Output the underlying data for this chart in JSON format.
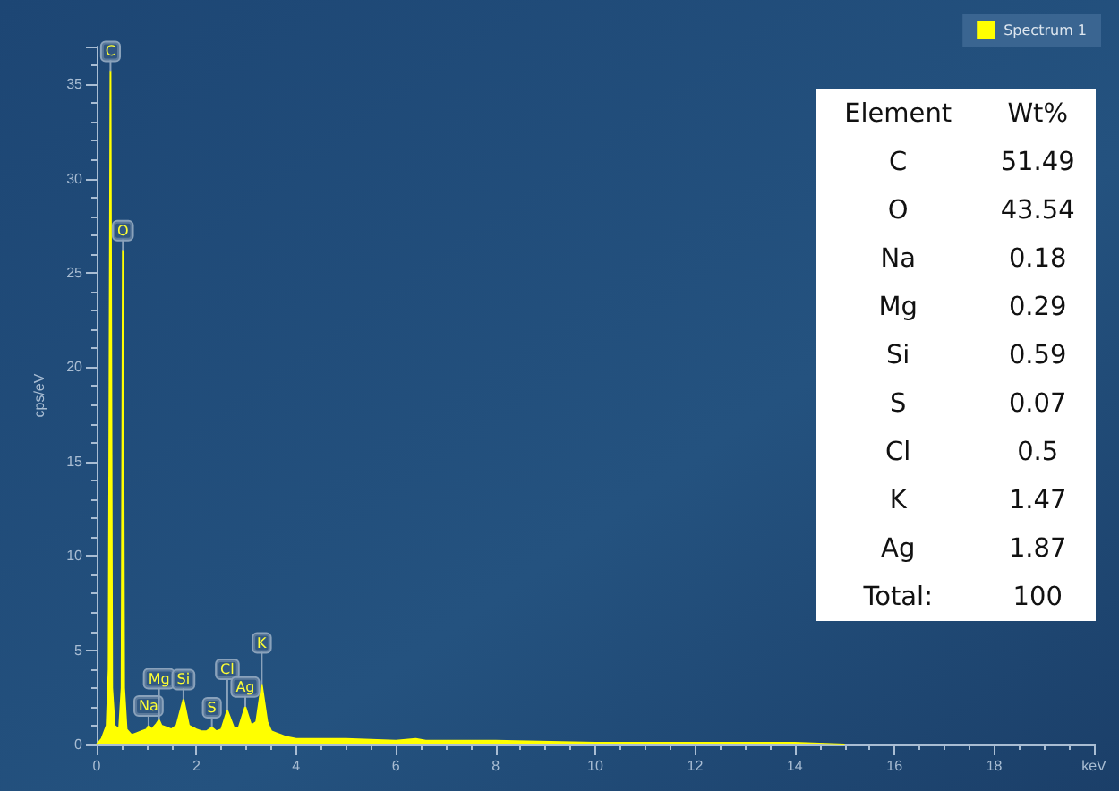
{
  "chart_data": {
    "type": "area",
    "ylabel": "cps/eV",
    "x": [
      0,
      0.1,
      0.2,
      0.24,
      0.277,
      0.31,
      0.36,
      0.45,
      0.5,
      0.525,
      0.55,
      0.6,
      0.7,
      0.8,
      0.9,
      1.0,
      1.04,
      1.1,
      1.2,
      1.25,
      1.3,
      1.4,
      1.5,
      1.6,
      1.74,
      1.85,
      2.0,
      2.1,
      2.2,
      2.31,
      2.4,
      2.5,
      2.62,
      2.75,
      2.85,
      2.98,
      3.1,
      3.2,
      3.31,
      3.42,
      3.5,
      3.6,
      3.7,
      3.8,
      4.0,
      5,
      6,
      6.4,
      6.6,
      8,
      10,
      12,
      14,
      15
    ],
    "series": [
      {
        "name": "Spectrum 1",
        "color": "#ffff00",
        "values": [
          0,
          0.3,
          1,
          4,
          35.7,
          3,
          1.0,
          0.8,
          3,
          26.2,
          3,
          0.8,
          0.5,
          0.6,
          0.7,
          0.8,
          1.0,
          0.8,
          1.1,
          1.3,
          1.0,
          0.9,
          0.8,
          1.0,
          2.4,
          1.0,
          0.8,
          0.7,
          0.7,
          0.9,
          0.7,
          0.8,
          1.8,
          0.9,
          0.9,
          2.0,
          1.0,
          1.2,
          3.2,
          1.2,
          0.7,
          0.6,
          0.5,
          0.4,
          0.3,
          0.3,
          0.2,
          0.3,
          0.2,
          0.2,
          0.1,
          0.1,
          0.1,
          0
        ]
      }
    ],
    "xlim": [
      0,
      20
    ],
    "xticks": [
      0,
      2,
      4,
      6,
      8,
      10,
      12,
      14,
      16,
      18,
      {
        "value": 20,
        "label": "keV"
      }
    ],
    "ylim": [
      0,
      37
    ],
    "yticks": [
      0,
      5,
      10,
      15,
      20,
      25,
      30,
      35
    ],
    "grid": false,
    "legend": "top right",
    "marker": "none",
    "annotations": [
      {
        "text": "C",
        "x": 0.277,
        "y": 35.7
      },
      {
        "text": "O",
        "x": 0.525,
        "y": 26.2
      },
      {
        "text": "Na",
        "x": 1.04,
        "y": 1.0
      },
      {
        "text": "Mg",
        "x": 1.25,
        "y": 1.3
      },
      {
        "text": "Si",
        "x": 1.74,
        "y": 2.4
      },
      {
        "text": "S",
        "x": 2.31,
        "y": 0.9
      },
      {
        "text": "Cl",
        "x": 2.62,
        "y": 1.8
      },
      {
        "text": "Ag",
        "x": 2.98,
        "y": 2.0
      },
      {
        "text": "K",
        "x": 3.31,
        "y": 3.2
      },
      "Element",
      "Wt%",
      "C",
      "51.49",
      "O",
      "43.54",
      "Na",
      "0.18",
      "Mg",
      "0.29",
      "Si",
      "0.59",
      "S",
      "0.07",
      "Cl",
      "0.5",
      "K",
      "1.47",
      "Ag",
      "1.87",
      "Total:",
      "100"
    ]
  }
}
